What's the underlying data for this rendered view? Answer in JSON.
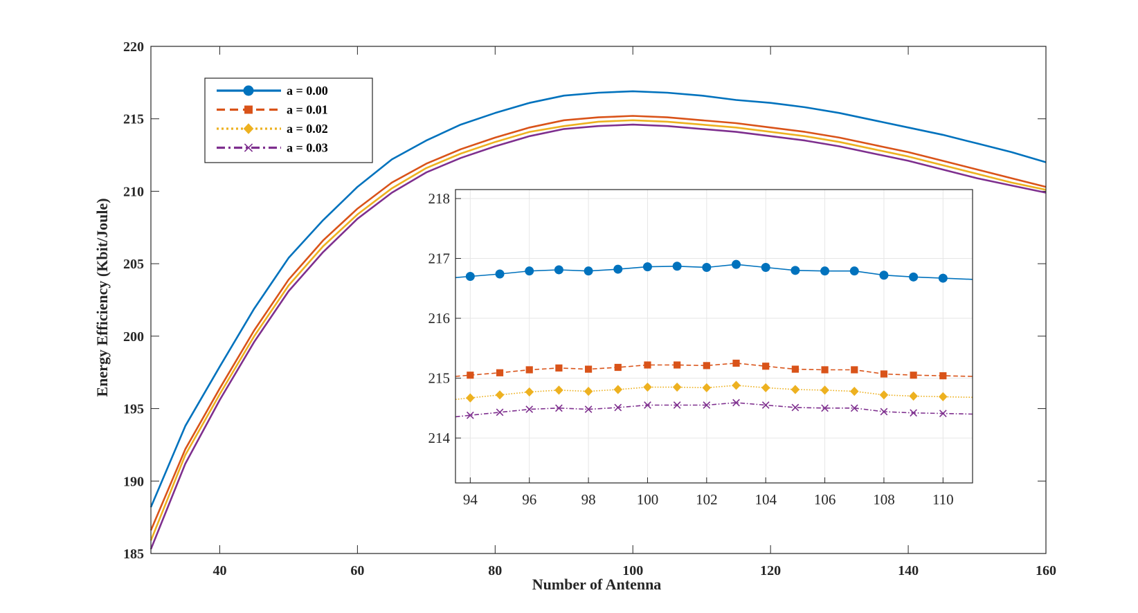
{
  "chart_data": {
    "type": "line",
    "title": "",
    "xlabel": "Number of Antenna",
    "ylabel": "Energy Efficiency (Kbit/Joule)",
    "xlim": [
      30,
      160
    ],
    "ylim": [
      185,
      220
    ],
    "xticks": [
      "40",
      "60",
      "80",
      "100",
      "120",
      "140",
      "160"
    ],
    "yticks": [
      "185",
      "190",
      "195",
      "200",
      "205",
      "210",
      "215",
      "220"
    ],
    "grid": false,
    "legend_position": "top-left",
    "x": [
      30,
      35,
      40,
      45,
      50,
      55,
      60,
      65,
      70,
      75,
      80,
      85,
      90,
      95,
      100,
      105,
      110,
      115,
      120,
      125,
      130,
      135,
      140,
      145,
      150,
      155,
      160
    ],
    "series": [
      {
        "name": "a = 0.00",
        "color": "#0072BD",
        "dash": "solid",
        "marker": "circle",
        "values": [
          188.2,
          193.8,
          197.9,
          201.9,
          205.4,
          208.0,
          210.3,
          212.2,
          213.5,
          214.6,
          215.4,
          216.1,
          216.6,
          216.8,
          216.9,
          216.8,
          216.6,
          216.3,
          216.1,
          215.8,
          215.4,
          214.9,
          214.4,
          213.9,
          213.3,
          212.7,
          212.0
        ]
      },
      {
        "name": "a = 0.01",
        "color": "#D95319",
        "dash": "dashed",
        "marker": "square",
        "values": [
          186.6,
          192.2,
          196.4,
          200.4,
          203.9,
          206.6,
          208.8,
          210.6,
          211.9,
          212.9,
          213.7,
          214.4,
          214.9,
          215.1,
          215.2,
          215.1,
          214.9,
          214.7,
          214.4,
          214.1,
          213.7,
          213.2,
          212.7,
          212.1,
          211.5,
          210.9,
          210.3
        ]
      },
      {
        "name": "a = 0.02",
        "color": "#EDB120",
        "dash": "dotted",
        "marker": "diamond",
        "values": [
          185.9,
          191.8,
          196.0,
          200.0,
          203.5,
          206.2,
          208.4,
          210.2,
          211.6,
          212.6,
          213.4,
          214.1,
          214.5,
          214.8,
          214.9,
          214.8,
          214.6,
          214.4,
          214.1,
          213.8,
          213.4,
          212.9,
          212.4,
          211.8,
          211.2,
          210.6,
          210.1
        ]
      },
      {
        "name": "a = 0.03",
        "color": "#7E2F8E",
        "dash": "dashdot",
        "marker": "x",
        "values": [
          185.3,
          191.2,
          195.6,
          199.6,
          203.1,
          205.8,
          208.1,
          209.9,
          211.3,
          212.3,
          213.1,
          213.8,
          214.3,
          214.5,
          214.6,
          214.5,
          214.3,
          214.1,
          213.8,
          213.5,
          213.1,
          212.6,
          212.1,
          211.5,
          210.9,
          210.4,
          209.9
        ]
      }
    ],
    "inset": {
      "xlim": [
        93.5,
        111
      ],
      "ylim": [
        213.25,
        218.15
      ],
      "xticks": [
        "94",
        "96",
        "98",
        "100",
        "102",
        "104",
        "106",
        "108",
        "110"
      ],
      "yticks": [
        "214",
        "215",
        "216",
        "217",
        "218"
      ],
      "grid": true,
      "x": [
        94,
        95,
        96,
        97,
        98,
        99,
        100,
        101,
        102,
        103,
        104,
        105,
        106,
        107,
        108,
        109,
        110
      ],
      "series": [
        {
          "name": "a = 0.00",
          "values": [
            216.7,
            216.74,
            216.79,
            216.81,
            216.79,
            216.82,
            216.86,
            216.87,
            216.85,
            216.9,
            216.85,
            216.8,
            216.79,
            216.79,
            216.72,
            216.69,
            216.67
          ]
        },
        {
          "name": "a = 0.01",
          "values": [
            215.05,
            215.09,
            215.14,
            215.17,
            215.15,
            215.18,
            215.22,
            215.22,
            215.21,
            215.25,
            215.2,
            215.15,
            215.14,
            215.14,
            215.07,
            215.05,
            215.04
          ]
        },
        {
          "name": "a = 0.02",
          "values": [
            214.67,
            214.72,
            214.77,
            214.8,
            214.78,
            214.81,
            214.85,
            214.85,
            214.84,
            214.88,
            214.84,
            214.81,
            214.8,
            214.78,
            214.72,
            214.7,
            214.69
          ]
        },
        {
          "name": "a = 0.03",
          "values": [
            214.38,
            214.43,
            214.48,
            214.5,
            214.48,
            214.51,
            214.55,
            214.55,
            214.55,
            214.59,
            214.55,
            214.51,
            214.5,
            214.5,
            214.44,
            214.42,
            214.41
          ]
        }
      ]
    }
  }
}
